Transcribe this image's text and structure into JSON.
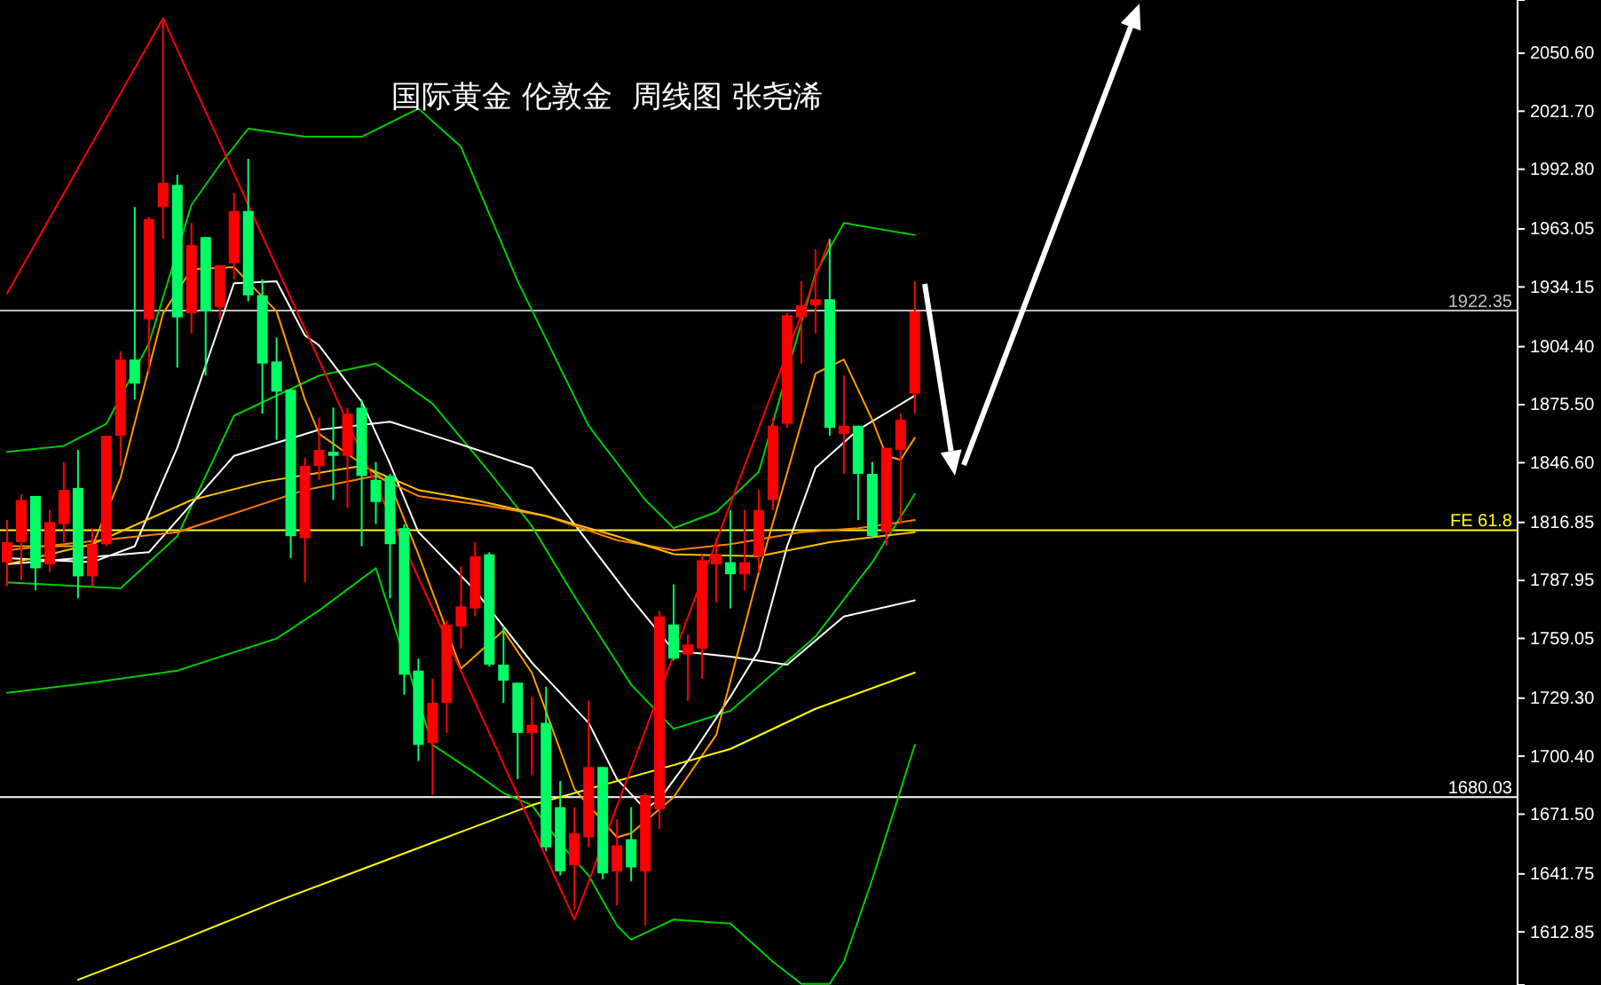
{
  "chart_data": {
    "type": "candlestick",
    "title": "国际黄金 伦敦金  周线图 张尧浠",
    "categories": [
      null,
      null,
      null,
      null,
      null,
      null,
      null,
      null,
      null,
      null,
      null,
      null,
      null,
      null,
      null,
      null,
      null,
      null,
      null,
      null,
      null,
      null,
      null,
      null,
      null,
      null,
      null,
      null,
      null,
      null,
      null,
      null,
      null,
      null,
      null,
      null,
      null,
      null,
      null,
      null,
      null,
      null,
      null,
      null,
      null,
      null,
      null,
      null,
      null,
      null,
      null,
      null,
      null,
      null,
      null,
      null,
      null,
      null,
      null,
      null,
      null,
      null,
      null,
      null,
      null,
      null,
      null,
      null,
      null,
      null,
      null,
      null,
      null,
      null,
      null,
      null,
      null,
      null,
      null,
      null,
      null,
      null,
      null,
      null,
      null,
      null,
      null,
      null,
      null,
      null,
      null,
      null,
      null,
      null,
      null,
      null,
      null,
      null,
      null,
      null,
      null,
      null,
      null,
      null,
      null,
      null,
      null
    ],
    "ohlc": [
      [
        1807,
        1818,
        1785,
        1797
      ],
      [
        1828,
        1831,
        1788,
        1807
      ],
      [
        1794,
        1830,
        1783,
        1830
      ],
      [
        1817,
        1823,
        1792,
        1796
      ],
      [
        1833,
        1847,
        1807,
        1816
      ],
      [
        1790,
        1853,
        1779,
        1834
      ],
      [
        1806,
        1814,
        1785,
        1790
      ],
      [
        1860,
        1860,
        1805,
        1806
      ],
      [
        1898,
        1902,
        1845,
        1860
      ],
      [
        1886,
        1974,
        1878,
        1898
      ],
      [
        1968,
        1969,
        1891,
        1918
      ],
      [
        1986,
        2068,
        1958,
        1974
      ],
      [
        1919,
        1990,
        1894,
        1985
      ],
      [
        1955,
        1966,
        1911,
        1921
      ],
      [
        1922,
        1959,
        1890,
        1959
      ],
      [
        1945,
        1945,
        1918,
        1924
      ],
      [
        1972,
        1981,
        1938,
        1946
      ],
      [
        1930,
        1998,
        1927,
        1972
      ],
      [
        1896,
        1938,
        1871,
        1930
      ],
      [
        1882,
        1909,
        1858,
        1897
      ],
      [
        1810,
        1883,
        1799,
        1883
      ],
      [
        1845,
        1849,
        1787,
        1809
      ],
      [
        1853,
        1869,
        1838,
        1845
      ],
      [
        1850,
        1874,
        1828,
        1852
      ],
      [
        1871,
        1874,
        1824,
        1850
      ],
      [
        1840,
        1878,
        1805,
        1874
      ],
      [
        1827,
        1847,
        1816,
        1838
      ],
      [
        1806,
        1841,
        1779,
        1840
      ],
      [
        1741,
        1816,
        1731,
        1814
      ],
      [
        1706,
        1749,
        1698,
        1743
      ],
      [
        1727,
        1739,
        1681,
        1707
      ],
      [
        1766,
        1768,
        1712,
        1727
      ],
      [
        1775,
        1795,
        1754,
        1765
      ],
      [
        1800,
        1807,
        1770,
        1774
      ],
      [
        1746,
        1802,
        1745,
        1801
      ],
      [
        1738,
        1765,
        1727,
        1746
      ],
      [
        1712,
        1737,
        1689,
        1737
      ],
      [
        1716,
        1730,
        1691,
        1712
      ],
      [
        1655,
        1735,
        1653,
        1717
      ],
      [
        1643,
        1688,
        1641,
        1675
      ],
      [
        1662,
        1675,
        1624,
        1646
      ],
      [
        1695,
        1728,
        1655,
        1660
      ],
      [
        1642,
        1695,
        1639,
        1695
      ],
      [
        1656,
        1669,
        1626,
        1643
      ],
      [
        1645,
        1675,
        1638,
        1659
      ],
      [
        1681,
        1682,
        1616,
        1643
      ],
      [
        1770,
        1773,
        1664,
        1674
      ],
      [
        1749,
        1786,
        1748,
        1766
      ],
      [
        1756,
        1761,
        1728,
        1751
      ],
      [
        1798,
        1801,
        1739,
        1754
      ],
      [
        1801,
        1809,
        1777,
        1796
      ],
      [
        1791,
        1823,
        1774,
        1797
      ],
      [
        1797,
        1823,
        1783,
        1791
      ],
      [
        1823,
        1833,
        1792,
        1800
      ],
      [
        1865,
        1869,
        1823,
        1828
      ],
      [
        1920,
        1921,
        1864,
        1866
      ],
      [
        1925,
        1937,
        1896,
        1919
      ],
      [
        1928,
        1953,
        1911,
        1925
      ],
      [
        1864,
        1958,
        1860,
        1928
      ],
      [
        1865,
        1890,
        1841,
        1861
      ],
      [
        1841,
        1865,
        1818,
        1865
      ],
      [
        1810,
        1847,
        1809,
        1841
      ],
      [
        1854,
        1854,
        1805,
        1812
      ],
      [
        1868,
        1871,
        1816,
        1853
      ],
      [
        1922,
        1937,
        1871,
        1881
      ],
      null,
      null,
      null,
      null,
      null,
      null,
      null,
      null,
      null,
      null,
      null,
      null,
      null,
      null,
      null,
      null,
      null,
      null,
      null,
      null,
      null,
      null,
      null,
      null,
      null,
      null,
      null,
      null,
      null,
      null,
      null,
      null,
      null,
      null,
      null,
      null,
      null,
      null,
      null,
      null,
      null,
      null
    ],
    "colors": [
      "#ff0000",
      "#ff0000",
      "#00ff66",
      "#ff0000",
      "#ff0000",
      "#00ff66",
      "#ff0000",
      "#ff0000",
      "#ff0000",
      "#00ff66",
      "#ff0000",
      "#ff0000",
      "#00ff66",
      "#ff0000",
      "#00ff66",
      "#ff0000",
      "#ff0000",
      "#00ff66",
      "#00ff66",
      "#00ff66",
      "#00ff66",
      "#ff0000",
      "#ff0000",
      "#00ff66",
      "#ff0000",
      "#00ff66",
      "#00ff66",
      "#00ff66",
      "#00ff66",
      "#00ff66",
      "#ff0000",
      "#ff0000",
      "#ff0000",
      "#ff0000",
      "#00ff66",
      "#00ff66",
      "#00ff66",
      "#ff0000",
      "#00ff66",
      "#00ff66",
      "#ff0000",
      "#ff0000",
      "#00ff66",
      "#ff0000",
      "#00ff66",
      "#ff0000",
      "#ff0000",
      "#00ff66",
      "#ff0000",
      "#ff0000",
      "#ff0000",
      "#00ff66",
      "#ff0000",
      "#ff0000",
      "#ff0000",
      "#ff0000",
      "#ff0000",
      "#ff0000",
      "#00ff66",
      "#ff0000",
      "#00ff66",
      "#00ff66",
      "#ff0000",
      "#ff0000",
      "#ff0000",
      null,
      null,
      null,
      null,
      null,
      null,
      null,
      null,
      null,
      null,
      null,
      null,
      null,
      null,
      null,
      null,
      null,
      null,
      null,
      null,
      null,
      null,
      null,
      null,
      null,
      null,
      null,
      null,
      null,
      null,
      null,
      null,
      null,
      null,
      null,
      null,
      null,
      null,
      null,
      null,
      null,
      null
    ],
    "ylim": [
      1586.4,
      2077.1
    ],
    "yticks": [
      {
        "value": 2050.6,
        "label": "2050.60"
      },
      {
        "value": 2021.7,
        "label": "2021.70"
      },
      {
        "value": 1992.8,
        "label": "1992.80"
      },
      {
        "value": 1963.05,
        "label": "1963.05"
      },
      {
        "value": 1934.15,
        "label": "1934.15"
      },
      {
        "value": 1904.4,
        "label": "1904.40"
      },
      {
        "value": 1875.5,
        "label": "1875.50"
      },
      {
        "value": 1846.6,
        "label": "1846.60"
      },
      {
        "value": 1816.85,
        "label": "1816.85"
      },
      {
        "value": 1787.95,
        "label": "1787.95"
      },
      {
        "value": 1759.05,
        "label": "1759.05"
      },
      {
        "value": 1729.3,
        "label": "1729.30"
      },
      {
        "value": 1700.4,
        "label": "1700.40"
      },
      {
        "value": 1671.5,
        "label": "1671.50"
      },
      {
        "value": 1641.75,
        "label": "1641.75"
      },
      {
        "value": 1612.85,
        "label": "1612.85"
      }
    ],
    "tick_labels": "y",
    "ref_lines": [
      {
        "axis": "y",
        "value": 1922.35,
        "label": "1922.35",
        "color": "#c0c0c0"
      },
      {
        "axis": "y",
        "value": 1813,
        "label": "FE 61.8",
        "color": "#ffff00"
      },
      {
        "axis": "y",
        "value": 1680.03,
        "label": "1680.03",
        "color": "#ffffff"
      }
    ],
    "series": [
      {
        "type": "line",
        "color": "#00cc00",
        "values": [
          1852,
          null,
          null,
          null,
          1855,
          null,
          null,
          1866,
          null,
          null,
          1906,
          null,
          null,
          1975,
          null,
          1995,
          null,
          2013,
          null,
          null,
          null,
          2009,
          null,
          null,
          null,
          2009,
          null,
          null,
          null,
          2023,
          null,
          null,
          2004,
          null,
          null,
          null,
          1937,
          null,
          null,
          null,
          null,
          1865,
          null,
          null,
          null,
          1828,
          null,
          1814,
          null,
          null,
          1822,
          null,
          null,
          1842,
          null,
          null,
          null,
          1941,
          null,
          1966,
          null,
          null,
          null,
          null,
          1960,
          null,
          null,
          null,
          null,
          null,
          null,
          null,
          null,
          null,
          null,
          null,
          null,
          null,
          null,
          null,
          null,
          null,
          null,
          null,
          null,
          null,
          null,
          null,
          null,
          null,
          null,
          null,
          null,
          null,
          null,
          null,
          null,
          null,
          null,
          null,
          null,
          null,
          null,
          null,
          null,
          null,
          null
        ]
      },
      {
        "type": "line",
        "color": "#00cc00",
        "values": [
          1787,
          null,
          null,
          null,
          null,
          null,
          null,
          null,
          1784,
          null,
          null,
          null,
          1810,
          null,
          null,
          null,
          1870,
          null,
          null,
          null,
          null,
          null,
          1890,
          null,
          null,
          null,
          1896,
          null,
          null,
          null,
          1876,
          null,
          null,
          null,
          1842,
          null,
          null,
          1815,
          null,
          null,
          1780,
          null,
          null,
          null,
          1736,
          null,
          null,
          1714,
          null,
          null,
          null,
          1723,
          null,
          null,
          null,
          null,
          null,
          1760,
          null,
          null,
          null,
          1797,
          null,
          null,
          1831,
          null,
          null,
          null,
          null,
          null,
          null,
          null,
          null,
          null,
          null,
          null,
          null,
          null,
          null,
          null,
          null,
          null,
          null,
          null,
          null,
          null,
          null,
          null,
          null,
          null,
          null,
          null,
          null,
          null,
          null,
          null,
          null,
          null,
          null,
          null,
          null,
          null,
          null,
          null,
          null,
          null,
          null
        ]
      },
      {
        "type": "line",
        "color": "#00cc00",
        "values": [
          1732,
          null,
          null,
          null,
          null,
          null,
          1737,
          null,
          null,
          null,
          null,
          null,
          1743,
          null,
          null,
          null,
          null,
          null,
          null,
          1759,
          null,
          null,
          1773,
          null,
          null,
          null,
          1794,
          null,
          null,
          null,
          1706,
          null,
          null,
          1692,
          null,
          1682,
          null,
          1676,
          null,
          1657,
          null,
          1641,
          null,
          1616,
          1609,
          null,
          null,
          1619,
          null,
          null,
          null,
          1617,
          null,
          null,
          1598,
          null,
          1587,
          null,
          1587,
          1598,
          null,
          1639,
          null,
          null,
          1706,
          null,
          null,
          null,
          null,
          null,
          null,
          null,
          null,
          null,
          null,
          null,
          null,
          null,
          null,
          null,
          null,
          null,
          null,
          null,
          null,
          null,
          null,
          null,
          null,
          null,
          null,
          null,
          null,
          null,
          null,
          null,
          null,
          null,
          null,
          null,
          null,
          null,
          null,
          null,
          null,
          null,
          null
        ]
      },
      {
        "type": "line",
        "color": "#ffffff",
        "values": [
          1799,
          null,
          null,
          null,
          null,
          null,
          1797,
          null,
          null,
          1805,
          null,
          null,
          1854,
          null,
          null,
          null,
          1936,
          null,
          null,
          1937,
          null,
          1910,
          1905,
          null,
          null,
          1877,
          null,
          1846,
          null,
          1812,
          null,
          null,
          null,
          1783,
          null,
          null,
          null,
          1747,
          null,
          null,
          null,
          1717,
          null,
          1689,
          null,
          1674,
          1679,
          null,
          1698,
          null,
          null,
          1730,
          null,
          1753,
          null,
          1805,
          null,
          1844,
          null,
          null,
          1863,
          null,
          null,
          null,
          1880,
          null,
          null,
          null,
          null,
          null,
          null,
          null,
          null,
          null,
          null,
          null,
          null,
          null,
          null,
          null,
          null,
          null,
          null,
          null,
          null,
          null,
          null,
          null,
          null,
          null,
          null,
          null,
          null,
          null,
          null,
          null,
          null,
          null,
          null,
          null,
          null,
          null,
          null,
          null,
          null,
          null,
          null
        ]
      },
      {
        "type": "line",
        "color": "#ffffff",
        "values": [
          1796,
          null,
          null,
          null,
          null,
          null,
          null,
          null,
          null,
          null,
          1802,
          null,
          null,
          null,
          null,
          null,
          1850,
          null,
          null,
          null,
          null,
          null,
          1863,
          null,
          null,
          null,
          null,
          1867,
          null,
          null,
          null,
          1858,
          null,
          null,
          null,
          null,
          null,
          1844,
          null,
          null,
          1816,
          null,
          null,
          null,
          1779,
          null,
          null,
          1753,
          null,
          null,
          null,
          1750,
          null,
          null,
          null,
          1746,
          null,
          null,
          null,
          1770,
          null,
          null,
          null,
          null,
          1778,
          null,
          null,
          null,
          null,
          null,
          null,
          null,
          null,
          null,
          null,
          null,
          null,
          null,
          null,
          null,
          null,
          null,
          null,
          null,
          null,
          null,
          null,
          null,
          null,
          null,
          null,
          null,
          null,
          null,
          null,
          null,
          null,
          null,
          null,
          null,
          null,
          null,
          null,
          null,
          null,
          null,
          null
        ]
      },
      {
        "type": "line",
        "color": "#ff9900",
        "values": [
          1805,
          null,
          null,
          null,
          null,
          null,
          1805,
          null,
          1839,
          null,
          null,
          1921,
          null,
          1943,
          null,
          null,
          1944,
          null,
          null,
          1922,
          null,
          1878,
          1861,
          null,
          1851,
          null,
          null,
          1836,
          null,
          1801,
          null,
          null,
          1744,
          null,
          null,
          1763,
          null,
          1742,
          null,
          null,
          1684,
          null,
          null,
          1660,
          1662,
          null,
          null,
          1680,
          null,
          null,
          1711,
          null,
          null,
          1792,
          null,
          null,
          null,
          1891,
          null,
          1898,
          null,
          1868,
          1850,
          1848,
          1859,
          null,
          null,
          null,
          null,
          null,
          null,
          null,
          null,
          null,
          null,
          null,
          null,
          null,
          null,
          null,
          null,
          null,
          null,
          null,
          null,
          null,
          null,
          null,
          null,
          null,
          null,
          null,
          null,
          null,
          null,
          null,
          null,
          null,
          null,
          null,
          null,
          null,
          null,
          null,
          null,
          null,
          null
        ]
      },
      {
        "type": "line",
        "color": "#ff8000",
        "values": [
          1803,
          null,
          null,
          null,
          null,
          null,
          null,
          null,
          null,
          null,
          null,
          null,
          1812,
          null,
          null,
          null,
          null,
          null,
          null,
          null,
          null,
          1833,
          null,
          null,
          null,
          null,
          1840,
          null,
          null,
          1830,
          null,
          null,
          null,
          null,
          1825,
          null,
          null,
          null,
          1820,
          null,
          null,
          null,
          null,
          1808,
          null,
          null,
          null,
          1803,
          null,
          null,
          null,
          1806,
          null,
          null,
          null,
          null,
          1812,
          null,
          null,
          null,
          1814,
          null,
          null,
          null,
          1818,
          null,
          null,
          null,
          null,
          null,
          null,
          null,
          null,
          null,
          null,
          null,
          null,
          null,
          null,
          null,
          null,
          null,
          null,
          null,
          null,
          null,
          null,
          null,
          null,
          null,
          null,
          null,
          null,
          null,
          null,
          null,
          null,
          null,
          null,
          null,
          null,
          null,
          null,
          null,
          null,
          null,
          null
        ]
      },
      {
        "type": "line",
        "color": "#ffc000",
        "values": [
          1796,
          null,
          null,
          null,
          null,
          null,
          1806,
          null,
          null,
          null,
          null,
          null,
          null,
          1828,
          null,
          null,
          null,
          null,
          1837,
          null,
          null,
          null,
          null,
          null,
          null,
          1845,
          null,
          null,
          null,
          1833,
          null,
          null,
          null,
          1828,
          null,
          null,
          null,
          null,
          1820,
          null,
          null,
          null,
          null,
          1810,
          null,
          null,
          null,
          1801,
          null,
          null,
          null,
          null,
          null,
          1800,
          null,
          null,
          null,
          null,
          1807,
          null,
          null,
          null,
          null,
          null,
          1812,
          null,
          null,
          null,
          null,
          null,
          null,
          null,
          null,
          null,
          null,
          null,
          null,
          null,
          null,
          null,
          null,
          null,
          null,
          null,
          null,
          null,
          null,
          null,
          null,
          null,
          null,
          null,
          null,
          null,
          null,
          null,
          null,
          null,
          null,
          null,
          null,
          null,
          null,
          null,
          null,
          null,
          null
        ]
      },
      {
        "type": "line",
        "color": "#ffff00",
        "values": [
          null,
          null,
          null,
          null,
          null,
          1589,
          null,
          null,
          null,
          null,
          null,
          null,
          1608,
          null,
          null,
          null,
          null,
          null,
          null,
          1628,
          null,
          null,
          null,
          null,
          null,
          1644,
          null,
          null,
          null,
          null,
          null,
          1660,
          null,
          null,
          null,
          null,
          null,
          1676,
          null,
          null,
          null,
          null,
          null,
          null,
          1690,
          null,
          null,
          null,
          null,
          null,
          null,
          1704,
          null,
          null,
          null,
          null,
          null,
          1724,
          null,
          null,
          null,
          null,
          null,
          null,
          1742,
          null,
          null,
          null,
          null,
          null,
          null,
          null,
          null,
          null,
          null,
          null,
          null,
          null,
          null,
          null,
          null,
          null,
          null,
          null,
          null,
          null,
          null,
          null,
          null,
          null,
          null,
          null,
          null,
          null,
          null,
          null,
          null,
          null,
          null,
          null,
          null,
          null,
          null,
          null,
          null,
          null,
          null
        ]
      },
      {
        "type": "line",
        "color": "#ff0000",
        "values": [
          1931,
          null,
          null,
          null,
          null,
          null,
          null,
          null,
          null,
          null,
          null,
          2068,
          null,
          null,
          null,
          null,
          null,
          null,
          null,
          null,
          null,
          null,
          null,
          null,
          null,
          null,
          null,
          null,
          null,
          null,
          null,
          null,
          null,
          null,
          null,
          null,
          null,
          null,
          null,
          null,
          1619,
          null,
          null,
          null,
          null,
          null,
          null,
          null,
          null,
          null,
          null,
          null,
          null,
          null,
          null,
          null,
          null,
          null,
          1958,
          null,
          null,
          null,
          null,
          null,
          null,
          null,
          null,
          null,
          null,
          null,
          null,
          null,
          null,
          null,
          null,
          null,
          null,
          null,
          null,
          null,
          null,
          null,
          null,
          null,
          null,
          null,
          null,
          null,
          null,
          null,
          null,
          null,
          null,
          null,
          null,
          null,
          null,
          null,
          null,
          null,
          null,
          null,
          null,
          null,
          null,
          null,
          null
        ]
      }
    ]
  }
}
